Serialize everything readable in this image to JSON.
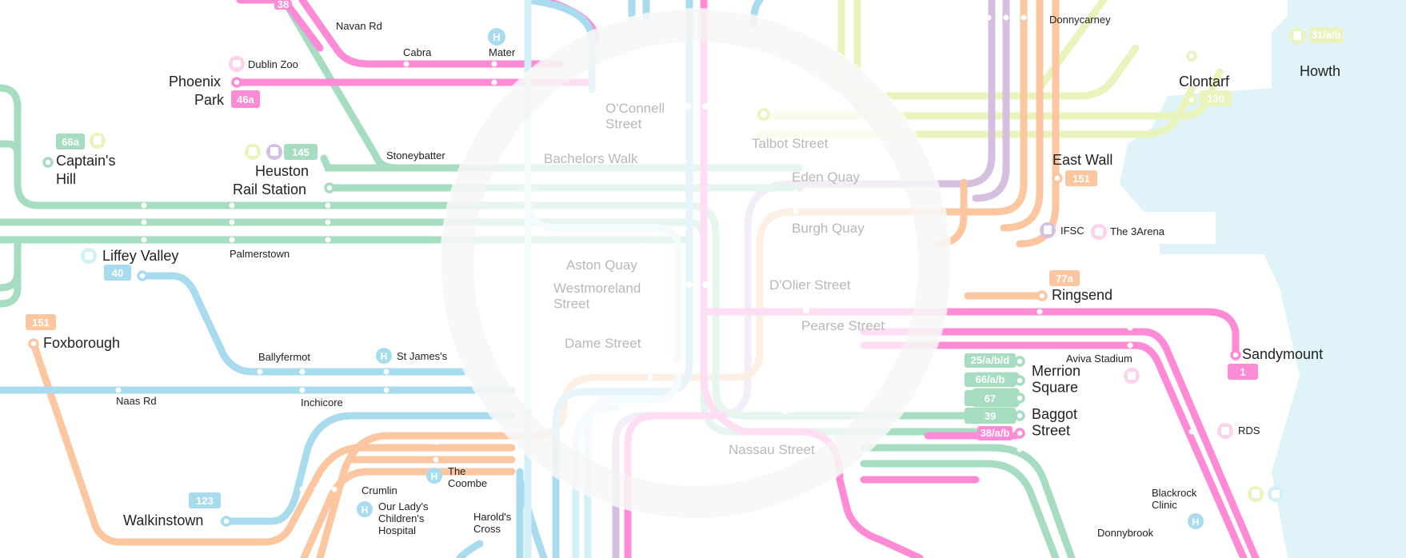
{
  "colors": {
    "green": "#a6dcbf",
    "pink": "#ff8ad6",
    "blue": "#a9dbef",
    "orange": "#fcc6a1",
    "purple": "#d4bfe0",
    "yellow": "#e8f4bc",
    "cyan": "#d3eff7",
    "sea": "#dff3f8"
  },
  "places": {
    "navan_rd": "Navan Rd",
    "cabra": "Cabra",
    "mater": "Mater",
    "dublin_zoo": "Dublin Zoo",
    "phoenix": "Phoenix",
    "park": "Park",
    "captains": "Captain's",
    "hill": "Hill",
    "stoneybatter": "Stoneybatter",
    "heuston": "Heuston",
    "rail_station": "Rail Station",
    "liffey_valley": "Liffey Valley",
    "palmerstown": "Palmerstown",
    "foxborough": "Foxborough",
    "ballyfermot": "Ballyfermot",
    "st_james": "St James's",
    "naas_rd": "Naas Rd",
    "inchicore": "Inchicore",
    "crumlin": "Crumlin",
    "the_coombe": "The\nCoombe",
    "walkinstown": "Walkinstown",
    "our_lady": "Our Lady's\nChildren's\nHospital",
    "harolds_cross": "Harold's\nCross",
    "oconnell": "O'Connell\nStreet",
    "bachelors_walk": "Bachelors Walk",
    "talbot": "Talbot Street",
    "eden_quay": "Eden Quay",
    "burgh_quay": "Burgh Quay",
    "aston_quay": "Aston Quay",
    "westmoreland": "Westmoreland\nStreet",
    "dolier": "D'Olier Street",
    "pearse": "Pearse Street",
    "dame": "Dame Street",
    "nassau": "Nassau Street",
    "donnycarney": "Donnycarney",
    "howth": "Howth",
    "clontarf": "Clontarf",
    "east_wall": "East Wall",
    "ifsc": "IFSC",
    "three_arena": "The 3Arena",
    "ringsend": "Ringsend",
    "sandymount": "Sandymount",
    "aviva": "Aviva Stadium",
    "merrion": "Merrion\nSquare",
    "baggot": "Baggot\nStreet",
    "rds": "RDS",
    "blackrock": "Blackrock\nClinic",
    "donnybrook": "Donnybrook",
    "h": "H"
  },
  "routes": {
    "r38": "38",
    "r46a": "46a",
    "r66a": "66a",
    "r145": "145",
    "r40": "40",
    "r151a": "151",
    "r123": "123",
    "r31": "31/a/b",
    "r130": "130",
    "r151b": "151",
    "r77a": "77a",
    "r1": "1",
    "r25": "25/a/b/d",
    "r66ab": "66/a/b",
    "r67": "67",
    "r39": "39",
    "r38ab": "38/a/b"
  }
}
